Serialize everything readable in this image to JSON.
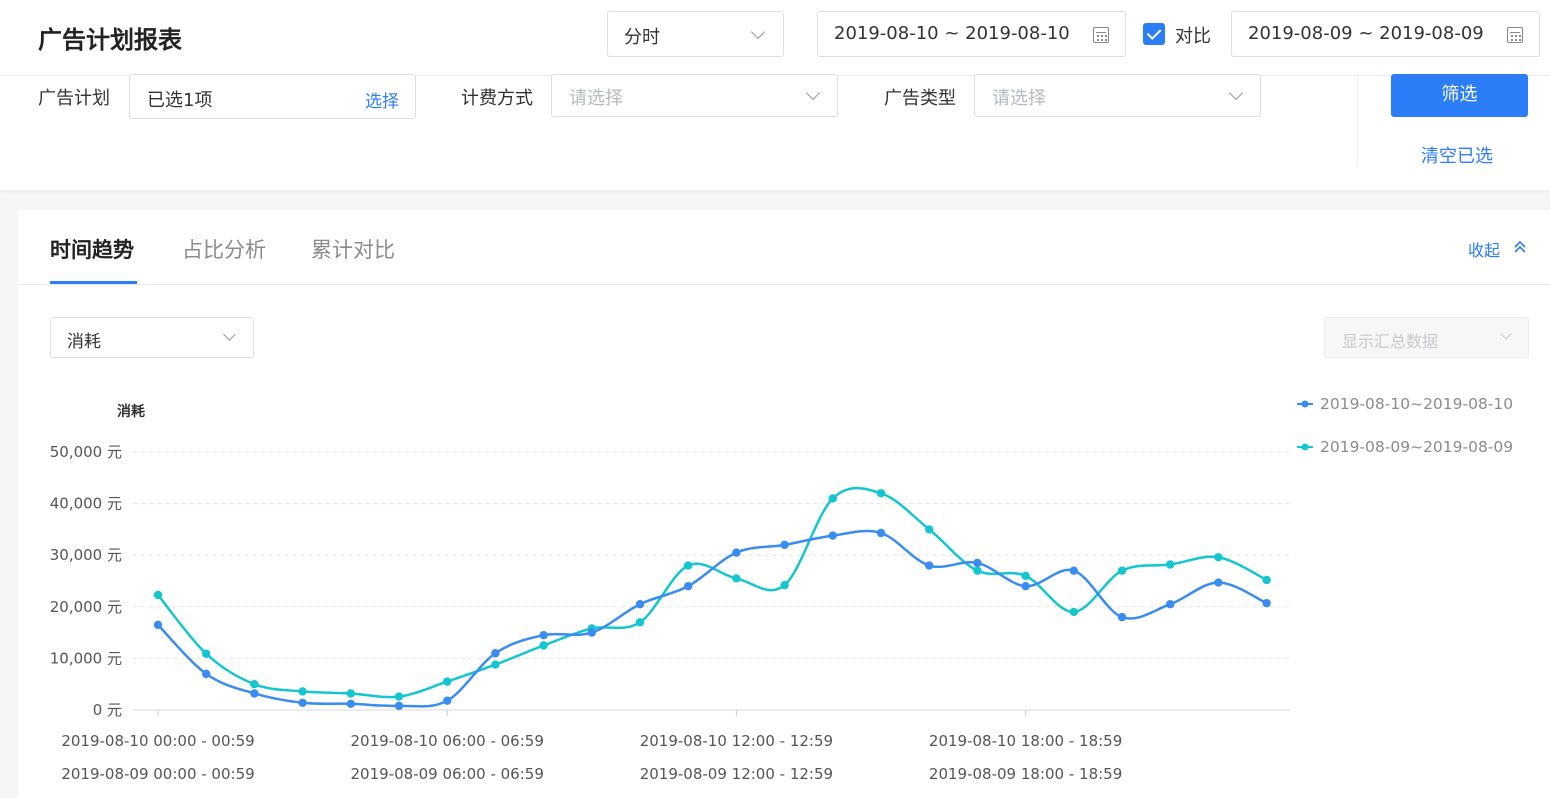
{
  "header": {
    "title": "广告计划报表",
    "granularity": "分时",
    "date_range": "2019-08-10 ~ 2019-08-10",
    "compare_label": "对比",
    "compare_range": "2019-08-09 ~ 2019-08-09"
  },
  "filters": {
    "plan_label": "广告计划",
    "plan_value": "已选1项",
    "plan_select": "选择",
    "billing_label": "计费方式",
    "billing_placeholder": "请选择",
    "adtype_label": "广告类型",
    "adtype_placeholder": "请选择",
    "filter_button": "筛选",
    "clear_button": "清空已选"
  },
  "tabs": [
    "时间趋势",
    "占比分析",
    "累计对比"
  ],
  "collapse_label": "收起",
  "metric_select": "消耗",
  "summary_select": "显示汇总数据",
  "colors": {
    "series_1": "#3a8cf2",
    "series_2": "#13c6d0",
    "accent": "#2b7ef7"
  },
  "chart_data": {
    "type": "line",
    "ylabel": "消耗",
    "ylim": [
      0,
      50000
    ],
    "y_ticks": [
      "0 元",
      "10,000 元",
      "20,000 元",
      "30,000 元",
      "40,000 元",
      "50,000 元"
    ],
    "x_tick_labels": [
      [
        "2019-08-10 00:00 - 00:59",
        "2019-08-09 00:00 - 00:59"
      ],
      [
        "2019-08-10 06:00 - 06:59",
        "2019-08-09 06:00 - 06:59"
      ],
      [
        "2019-08-10 12:00 - 12:59",
        "2019-08-09 12:00 - 12:59"
      ],
      [
        "2019-08-10 18:00 - 18:59",
        "2019-08-09 18:00 - 18:59"
      ]
    ],
    "x": [
      0,
      1,
      2,
      3,
      4,
      5,
      6,
      7,
      8,
      9,
      10,
      11,
      12,
      13,
      14,
      15,
      16,
      17,
      18,
      19,
      20,
      21,
      22,
      23
    ],
    "legend_placement": "top-right",
    "grid": true,
    "series": [
      {
        "name": "2019-08-10~2019-08-10",
        "values": [
          16500,
          7000,
          3200,
          1400,
          1200,
          800,
          1800,
          11000,
          14500,
          15000,
          20500,
          24000,
          30500,
          32000,
          33800,
          34300,
          28000,
          28500,
          24000,
          27000,
          18000,
          20500,
          24700,
          20700
        ]
      },
      {
        "name": "2019-08-09~2019-08-09",
        "values": [
          22300,
          10900,
          5000,
          3600,
          3200,
          2600,
          5500,
          8800,
          12500,
          15800,
          17000,
          28000,
          25500,
          24200,
          41000,
          42000,
          35000,
          27000,
          26000,
          19000,
          27000,
          28200,
          29600,
          25200
        ]
      }
    ]
  }
}
